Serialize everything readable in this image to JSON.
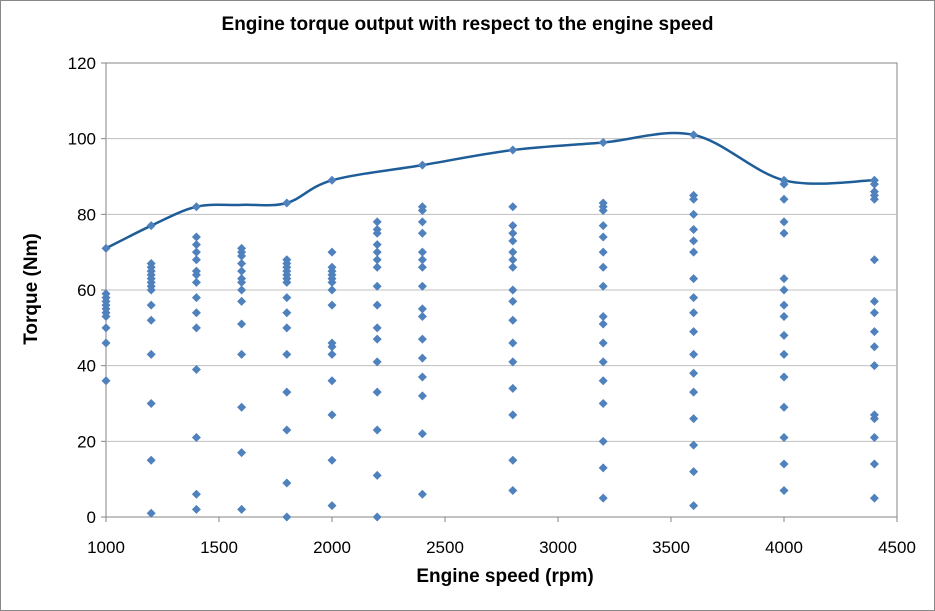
{
  "chart_data": {
    "type": "scatter",
    "title": "Engine torque output with respect to the engine speed",
    "xlabel": "Engine speed (rpm)",
    "ylabel": "Torque (Nm)",
    "xlim": [
      1000,
      4500
    ],
    "ylim": [
      0,
      120
    ],
    "xticks": [
      1000,
      1500,
      2000,
      2500,
      3000,
      3500,
      4000,
      4500
    ],
    "yticks": [
      0,
      20,
      40,
      60,
      80,
      100,
      120
    ],
    "grid": "horizontal",
    "legend": "none",
    "colors": {
      "points": "#4f81bd",
      "curve": "#1f5d99",
      "grid": "#bfbfbf",
      "axis": "#868686"
    },
    "series": [
      {
        "type": "scatter",
        "marker": "diamond",
        "points": [
          [
            1000,
            36
          ],
          [
            1000,
            46
          ],
          [
            1000,
            50
          ],
          [
            1000,
            53
          ],
          [
            1000,
            54
          ],
          [
            1000,
            55
          ],
          [
            1000,
            56
          ],
          [
            1000,
            57
          ],
          [
            1000,
            58
          ],
          [
            1000,
            59
          ],
          [
            1000,
            71
          ],
          [
            1200,
            1
          ],
          [
            1200,
            15
          ],
          [
            1200,
            30
          ],
          [
            1200,
            43
          ],
          [
            1200,
            52
          ],
          [
            1200,
            56
          ],
          [
            1200,
            60
          ],
          [
            1200,
            61
          ],
          [
            1200,
            62
          ],
          [
            1200,
            63
          ],
          [
            1200,
            64
          ],
          [
            1200,
            65
          ],
          [
            1200,
            66
          ],
          [
            1200,
            67
          ],
          [
            1200,
            77
          ],
          [
            1400,
            2
          ],
          [
            1400,
            6
          ],
          [
            1400,
            21
          ],
          [
            1400,
            39
          ],
          [
            1400,
            50
          ],
          [
            1400,
            54
          ],
          [
            1400,
            58
          ],
          [
            1400,
            62
          ],
          [
            1400,
            64
          ],
          [
            1400,
            65
          ],
          [
            1400,
            68
          ],
          [
            1400,
            70
          ],
          [
            1400,
            72
          ],
          [
            1400,
            74
          ],
          [
            1400,
            82
          ],
          [
            1600,
            2
          ],
          [
            1600,
            17
          ],
          [
            1600,
            29
          ],
          [
            1600,
            43
          ],
          [
            1600,
            51
          ],
          [
            1600,
            57
          ],
          [
            1600,
            60
          ],
          [
            1600,
            62
          ],
          [
            1600,
            63
          ],
          [
            1600,
            65
          ],
          [
            1600,
            67
          ],
          [
            1600,
            69
          ],
          [
            1600,
            70
          ],
          [
            1600,
            71
          ],
          [
            1800,
            0
          ],
          [
            1800,
            9
          ],
          [
            1800,
            23
          ],
          [
            1800,
            33
          ],
          [
            1800,
            43
          ],
          [
            1800,
            50
          ],
          [
            1800,
            54
          ],
          [
            1800,
            58
          ],
          [
            1800,
            62
          ],
          [
            1800,
            63
          ],
          [
            1800,
            64
          ],
          [
            1800,
            65
          ],
          [
            1800,
            66
          ],
          [
            1800,
            67
          ],
          [
            1800,
            68
          ],
          [
            1800,
            83
          ],
          [
            2000,
            3
          ],
          [
            2000,
            15
          ],
          [
            2000,
            27
          ],
          [
            2000,
            36
          ],
          [
            2000,
            43
          ],
          [
            2000,
            45
          ],
          [
            2000,
            46
          ],
          [
            2000,
            56
          ],
          [
            2000,
            60
          ],
          [
            2000,
            62
          ],
          [
            2000,
            63
          ],
          [
            2000,
            64
          ],
          [
            2000,
            65
          ],
          [
            2000,
            66
          ],
          [
            2000,
            70
          ],
          [
            2000,
            89
          ],
          [
            2200,
            0
          ],
          [
            2200,
            11
          ],
          [
            2200,
            23
          ],
          [
            2200,
            33
          ],
          [
            2200,
            41
          ],
          [
            2200,
            47
          ],
          [
            2200,
            50
          ],
          [
            2200,
            56
          ],
          [
            2200,
            61
          ],
          [
            2200,
            66
          ],
          [
            2200,
            68
          ],
          [
            2200,
            70
          ],
          [
            2200,
            72
          ],
          [
            2200,
            75
          ],
          [
            2200,
            76
          ],
          [
            2200,
            78
          ],
          [
            2400,
            6
          ],
          [
            2400,
            22
          ],
          [
            2400,
            32
          ],
          [
            2400,
            37
          ],
          [
            2400,
            42
          ],
          [
            2400,
            47
          ],
          [
            2400,
            53
          ],
          [
            2400,
            55
          ],
          [
            2400,
            61
          ],
          [
            2400,
            66
          ],
          [
            2400,
            68
          ],
          [
            2400,
            70
          ],
          [
            2400,
            75
          ],
          [
            2400,
            78
          ],
          [
            2400,
            81
          ],
          [
            2400,
            82
          ],
          [
            2400,
            93
          ],
          [
            2800,
            7
          ],
          [
            2800,
            15
          ],
          [
            2800,
            27
          ],
          [
            2800,
            34
          ],
          [
            2800,
            41
          ],
          [
            2800,
            46
          ],
          [
            2800,
            52
          ],
          [
            2800,
            57
          ],
          [
            2800,
            60
          ],
          [
            2800,
            66
          ],
          [
            2800,
            68
          ],
          [
            2800,
            70
          ],
          [
            2800,
            73
          ],
          [
            2800,
            75
          ],
          [
            2800,
            77
          ],
          [
            2800,
            82
          ],
          [
            2800,
            97
          ],
          [
            3200,
            5
          ],
          [
            3200,
            13
          ],
          [
            3200,
            20
          ],
          [
            3200,
            30
          ],
          [
            3200,
            36
          ],
          [
            3200,
            41
          ],
          [
            3200,
            46
          ],
          [
            3200,
            51
          ],
          [
            3200,
            53
          ],
          [
            3200,
            61
          ],
          [
            3200,
            66
          ],
          [
            3200,
            70
          ],
          [
            3200,
            74
          ],
          [
            3200,
            77
          ],
          [
            3200,
            81
          ],
          [
            3200,
            82
          ],
          [
            3200,
            83
          ],
          [
            3200,
            99
          ],
          [
            3600,
            3
          ],
          [
            3600,
            12
          ],
          [
            3600,
            19
          ],
          [
            3600,
            26
          ],
          [
            3600,
            33
          ],
          [
            3600,
            38
          ],
          [
            3600,
            43
          ],
          [
            3600,
            49
          ],
          [
            3600,
            54
          ],
          [
            3600,
            58
          ],
          [
            3600,
            63
          ],
          [
            3600,
            70
          ],
          [
            3600,
            73
          ],
          [
            3600,
            76
          ],
          [
            3600,
            80
          ],
          [
            3600,
            84
          ],
          [
            3600,
            85
          ],
          [
            3600,
            101
          ],
          [
            4000,
            7
          ],
          [
            4000,
            14
          ],
          [
            4000,
            21
          ],
          [
            4000,
            29
          ],
          [
            4000,
            37
          ],
          [
            4000,
            43
          ],
          [
            4000,
            48
          ],
          [
            4000,
            53
          ],
          [
            4000,
            56
          ],
          [
            4000,
            60
          ],
          [
            4000,
            63
          ],
          [
            4000,
            75
          ],
          [
            4000,
            78
          ],
          [
            4000,
            84
          ],
          [
            4000,
            88
          ],
          [
            4000,
            89
          ],
          [
            4400,
            5
          ],
          [
            4400,
            14
          ],
          [
            4400,
            21
          ],
          [
            4400,
            26
          ],
          [
            4400,
            27
          ],
          [
            4400,
            40
          ],
          [
            4400,
            45
          ],
          [
            4400,
            49
          ],
          [
            4400,
            54
          ],
          [
            4400,
            57
          ],
          [
            4400,
            68
          ],
          [
            4400,
            84
          ],
          [
            4400,
            85
          ],
          [
            4400,
            86
          ],
          [
            4400,
            88
          ],
          [
            4400,
            89
          ]
        ]
      },
      {
        "type": "smooth-line",
        "points": [
          [
            1000,
            71
          ],
          [
            1200,
            77
          ],
          [
            1400,
            82
          ],
          [
            1600,
            82.5
          ],
          [
            1800,
            83
          ],
          [
            2000,
            89
          ],
          [
            2400,
            93
          ],
          [
            2800,
            97
          ],
          [
            3200,
            99
          ],
          [
            3600,
            101
          ],
          [
            4000,
            89
          ],
          [
            4400,
            89
          ]
        ]
      }
    ]
  }
}
